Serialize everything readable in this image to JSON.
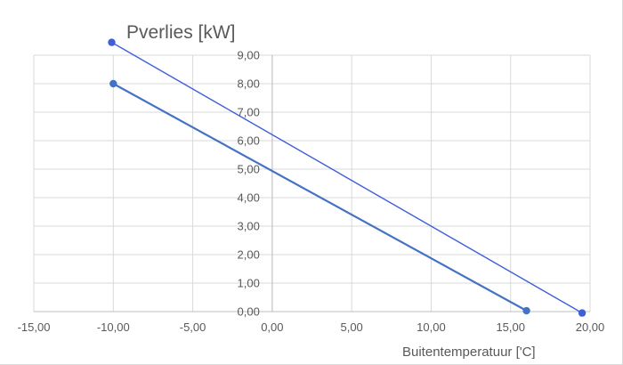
{
  "chart_data": {
    "type": "scatter",
    "title": "Pverlies [kW]",
    "xlabel": "Buitentemperatuur ['C]",
    "ylabel": "",
    "xlim": [
      -15,
      20
    ],
    "ylim": [
      0,
      9
    ],
    "x_ticks": [
      "-15,00",
      "-10,00",
      "-5,00",
      "0,00",
      "5,00",
      "10,00",
      "15,00",
      "20,00"
    ],
    "y_ticks": [
      "0,00",
      "1,00",
      "2,00",
      "3,00",
      "4,00",
      "5,00",
      "6,00",
      "7,00",
      "8,00",
      "9,00"
    ],
    "grid": true,
    "series": [
      {
        "points": [
          [
            -10.1,
            9.45
          ],
          [
            19.5,
            -0.05
          ]
        ],
        "color": "#3d5fd9"
      },
      {
        "points": [
          [
            -10.0,
            8.0
          ],
          [
            16.0,
            0.03
          ]
        ],
        "color": "#4472c4"
      }
    ]
  }
}
